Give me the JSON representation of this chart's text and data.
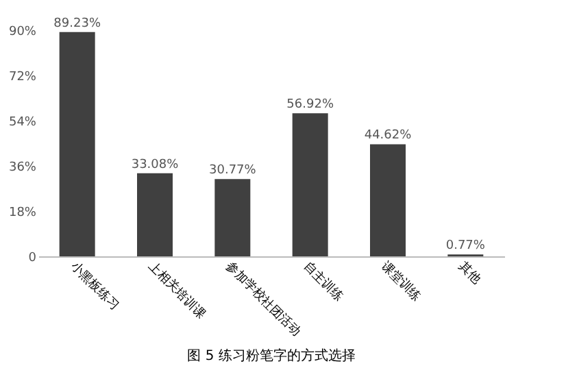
{
  "chart_data": {
    "type": "bar",
    "title": "图 5  练习粉笔字的方式选择",
    "categories": [
      "小黑板练习",
      "上相关培训课",
      "参加学校社团活动",
      "自主训练",
      "课堂训练",
      "其他"
    ],
    "values": [
      89.23,
      33.08,
      30.77,
      56.92,
      44.62,
      0.77
    ],
    "value_labels": [
      "89.23%",
      "33.08%",
      "30.77%",
      "56.92%",
      "44.62%",
      "0.77%"
    ],
    "color": "#404040",
    "ylim": [
      0,
      90
    ],
    "yticks": [
      0,
      {
        "value": 18,
        "label": "18%"
      },
      {
        "value": 36,
        "label": "36%"
      },
      {
        "value": 54,
        "label": "54%"
      },
      {
        "value": 72,
        "label": "72%"
      },
      {
        "value": 90,
        "label": "90%"
      }
    ],
    "grid": false
  }
}
